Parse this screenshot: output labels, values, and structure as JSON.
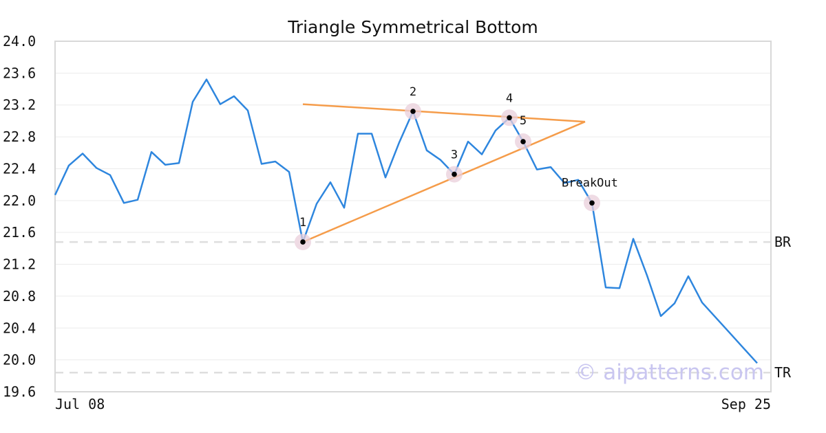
{
  "chart_data": {
    "type": "line",
    "title": "Triangle Symmetrical Bottom",
    "xlabel": "",
    "ylabel": "",
    "ylim": [
      19.6,
      24.0
    ],
    "yticks": [
      "24.0",
      "23.6",
      "23.2",
      "22.8",
      "22.4",
      "22.0",
      "21.6",
      "21.2",
      "20.8",
      "20.4",
      "20.0",
      "19.6"
    ],
    "x_tick_labels": [
      {
        "index": 0,
        "label": "Jul 08"
      },
      {
        "index": 52,
        "label": "Sep 25"
      }
    ],
    "grid": "horizontal",
    "x_count": 52,
    "series": [
      {
        "color": "#2e86de",
        "values": [
          22.07,
          22.44,
          22.59,
          22.41,
          22.32,
          21.97,
          22.01,
          22.61,
          22.45,
          22.47,
          23.24,
          23.52,
          23.21,
          23.31,
          23.13,
          22.46,
          22.49,
          22.36,
          21.48,
          21.96,
          22.23,
          21.91,
          22.84,
          22.84,
          22.29,
          22.73,
          23.12,
          22.63,
          22.51,
          22.33,
          22.74,
          22.58,
          22.88,
          23.04,
          22.74,
          22.39,
          22.42,
          22.22,
          22.26,
          21.97,
          20.91,
          20.9,
          21.52,
          21.06,
          20.55,
          20.71,
          21.05,
          20.72,
          20.53,
          20.34,
          20.15,
          19.96
        ]
      }
    ],
    "trendlines": [
      {
        "color": "#f59c4a",
        "from": {
          "index": 18,
          "y": 23.21
        },
        "to": {
          "index": 38.5,
          "y": 22.99
        }
      },
      {
        "color": "#f59c4a",
        "from": {
          "index": 18,
          "y": 21.48
        },
        "to": {
          "index": 38.5,
          "y": 22.99
        }
      }
    ],
    "points": [
      {
        "label": "1",
        "index": 18,
        "y": 21.48
      },
      {
        "label": "2",
        "index": 26,
        "y": 23.12
      },
      {
        "label": "3",
        "index": 29,
        "y": 22.33
      },
      {
        "label": "4",
        "index": 33,
        "y": 23.04
      },
      {
        "label": "5",
        "index": 34,
        "y": 22.74
      },
      {
        "label": "BreakOut",
        "index": 39,
        "y": 21.97
      }
    ],
    "reference_lines": [
      {
        "label": "BR",
        "y": 21.48
      },
      {
        "label": "TR",
        "y": 19.84
      }
    ],
    "watermark": "© aipatterns.com"
  }
}
